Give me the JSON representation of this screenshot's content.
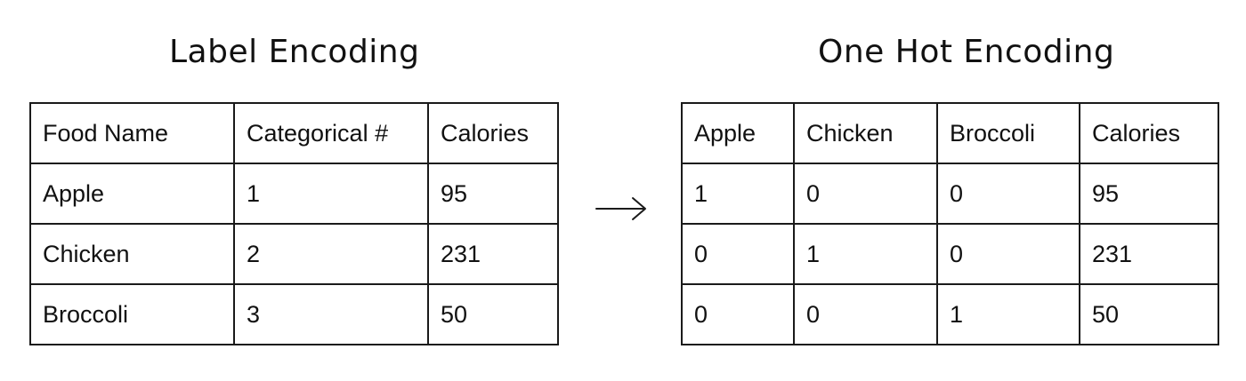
{
  "label_encoding": {
    "title": "Label Encoding",
    "headers": [
      "Food Name",
      "Categorical #",
      "Calories"
    ],
    "rows": [
      [
        "Apple",
        "1",
        "95"
      ],
      [
        "Chicken",
        "2",
        "231"
      ],
      [
        "Broccoli",
        "3",
        "50"
      ]
    ]
  },
  "one_hot_encoding": {
    "title": "One Hot Encoding",
    "headers": [
      "Apple",
      "Chicken",
      "Broccoli",
      "Calories"
    ],
    "rows": [
      [
        "1",
        "0",
        "0",
        "95"
      ],
      [
        "0",
        "1",
        "0",
        "231"
      ],
      [
        "0",
        "0",
        "1",
        "50"
      ]
    ]
  },
  "arrow": {
    "icon": "right-arrow-icon",
    "color": "#1a1a1a"
  }
}
